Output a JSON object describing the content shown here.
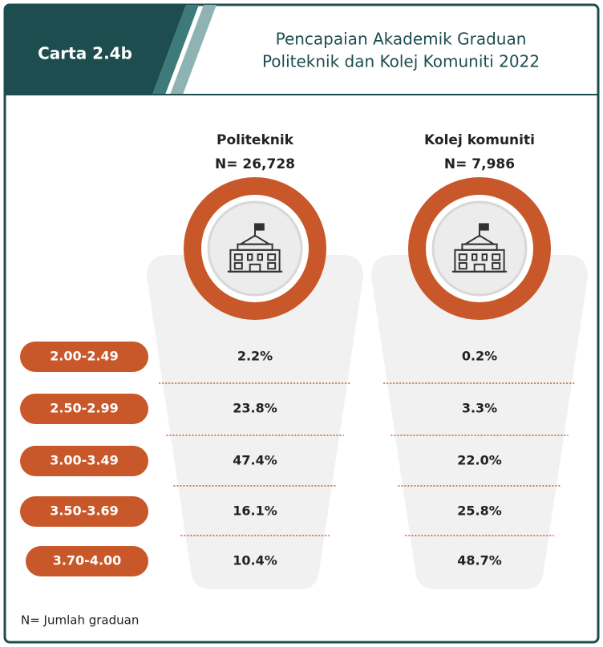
{
  "header": {
    "label": "Carta 2.4b",
    "title": [
      "Pencapaian Akademik Graduan",
      "Politeknik dan Kolej Komuniti 2022"
    ]
  },
  "columns": [
    {
      "name": "Politeknik",
      "n": "N= 26,728"
    },
    {
      "name": "Kolej komuniti",
      "n": "N= 7,986"
    }
  ],
  "rows": [
    {
      "range": "2.00-2.49",
      "values": [
        "2.2%",
        "0.2%"
      ]
    },
    {
      "range": "2.50-2.99",
      "values": [
        "23.8%",
        "3.3%"
      ]
    },
    {
      "range": "3.00-3.49",
      "values": [
        "47.4%",
        "22.0%"
      ]
    },
    {
      "range": "3.50-3.69",
      "values": [
        "16.1%",
        "25.8%"
      ]
    },
    {
      "range": "3.70-4.00",
      "values": [
        "10.4%",
        "48.7%"
      ]
    }
  ],
  "footnote": "N= Jumlah graduan"
}
